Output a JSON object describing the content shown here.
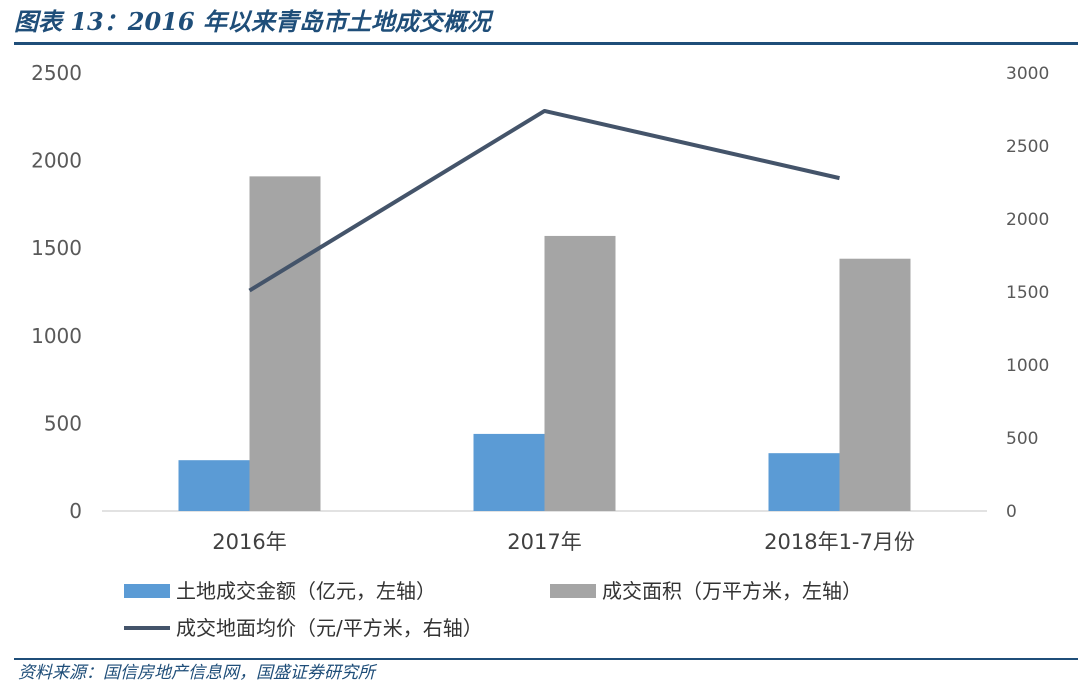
{
  "figure": {
    "title": "图表 13：2016 年以来青岛市土地成交概况",
    "source": "资料来源：国信房地产信息网，国盛证券研究所"
  },
  "colors": {
    "title": "#1f4e79",
    "land_value": "#5b9bd5",
    "area": "#a5a5a5",
    "price_line": "#44546a"
  },
  "chart_data": {
    "type": "bar",
    "title": "",
    "categories": [
      "2016年",
      "2017年",
      "2018年1-7月份"
    ],
    "y_left": {
      "ylim": [
        0,
        2500
      ],
      "ticks": [
        0,
        500,
        1000,
        1500,
        2000,
        2500
      ]
    },
    "y_right": {
      "ylim": [
        0,
        3000
      ],
      "ticks": [
        0,
        500,
        1000,
        1500,
        2000,
        2500,
        3000
      ]
    },
    "series": [
      {
        "name": "土地成交金额（亿元，左轴）",
        "type": "bar",
        "axis": "left",
        "values": [
          290,
          440,
          330
        ]
      },
      {
        "name": "成交面积（万平方米，左轴）",
        "type": "bar",
        "axis": "left",
        "values": [
          1910,
          1570,
          1440
        ]
      },
      {
        "name": "成交地面均价（元/平方米，右轴）",
        "type": "line",
        "axis": "right",
        "values": [
          1510,
          2740,
          2280
        ]
      }
    ],
    "grid": false,
    "legend_position": "bottom"
  }
}
